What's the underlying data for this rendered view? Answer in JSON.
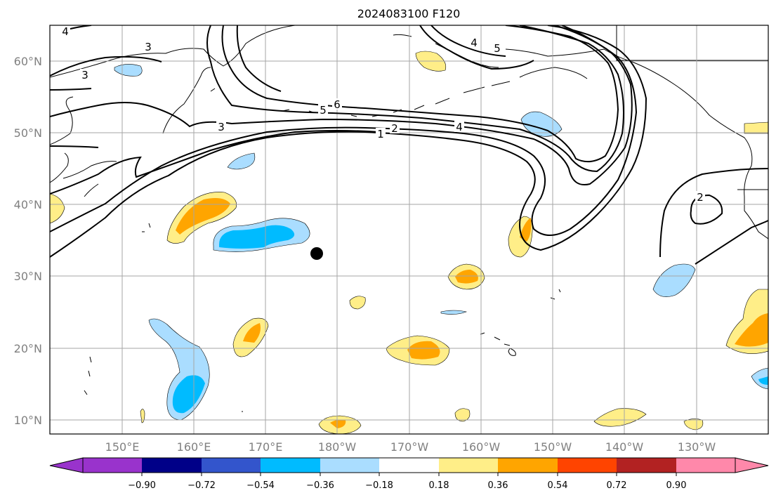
{
  "title": "2024083100 F120",
  "map": {
    "lat_labels": [
      "60°N",
      "50°N",
      "40°N",
      "30°N",
      "20°N",
      "10°N"
    ],
    "lon_labels": [
      "150°E",
      "160°E",
      "170°E",
      "180°W",
      "170°W",
      "160°W",
      "150°W",
      "140°W",
      "130°W"
    ],
    "contour_labels": [
      "4",
      "3",
      "3",
      "3",
      "6",
      "5",
      "2",
      "1",
      "4",
      "4",
      "5",
      "2"
    ],
    "marker": {
      "kind": "filled-circle",
      "color": "#000000"
    }
  },
  "colorbar": {
    "tick_labels": [
      "−0.90",
      "−0.72",
      "−0.54",
      "−0.36",
      "−0.18",
      "0.18",
      "0.36",
      "0.54",
      "0.72",
      "0.90"
    ],
    "colors": [
      "#9933cc",
      "#000088",
      "#3355cc",
      "#00bbff",
      "#aaddff",
      "#ffffff",
      "#ffee88",
      "#ffa500",
      "#ff4400",
      "#b22222",
      "#ff88aa"
    ]
  }
}
